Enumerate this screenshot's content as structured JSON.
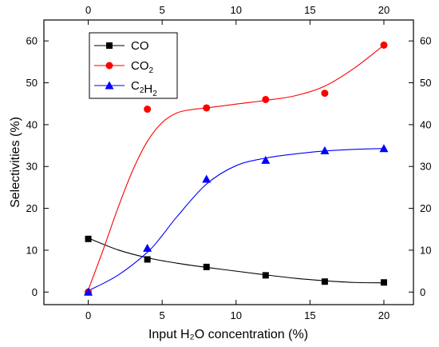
{
  "chart_data": {
    "type": "scatter",
    "xlabel": "Input H₂O concentration (%)",
    "ylabel": "Selectivities (%)",
    "xlim": [
      -3,
      22
    ],
    "ylim": [
      -3,
      65
    ],
    "x_ticks": [
      0,
      5,
      10,
      15,
      20
    ],
    "y_ticks": [
      0,
      10,
      20,
      30,
      40,
      50,
      60
    ],
    "top_axis_ticks": [
      0,
      5,
      10,
      15,
      20
    ],
    "right_axis_ticks": [
      0,
      10,
      20,
      30,
      40,
      50,
      60
    ],
    "grid": false,
    "legend_position": "top-left",
    "series": [
      {
        "name": "CO",
        "color": "#000000",
        "marker": "square",
        "x": [
          0,
          4,
          8,
          12,
          16,
          20
        ],
        "y": [
          12.7,
          7.8,
          6.0,
          4.0,
          2.5,
          2.3
        ],
        "curve_x": [
          0,
          2,
          4,
          6,
          8,
          10,
          12,
          14,
          16,
          18,
          20
        ],
        "curve_y": [
          12.9,
          10.1,
          8.2,
          6.9,
          5.9,
          5.0,
          4.1,
          3.3,
          2.7,
          2.3,
          2.2
        ]
      },
      {
        "name": "CO₂",
        "color": "#ff0000",
        "marker": "circle",
        "x": [
          0,
          4,
          8,
          12,
          16,
          20
        ],
        "y": [
          0,
          43.7,
          44.0,
          46.0,
          47.5,
          59.0
        ],
        "curve_x": [
          0,
          1,
          2,
          3,
          4,
          5,
          6,
          7,
          8,
          10,
          12,
          14,
          16,
          18,
          20
        ],
        "curve_y": [
          0.5,
          10,
          20,
          29,
          36,
          40.5,
          42.8,
          43.6,
          44.0,
          44.9,
          45.8,
          46.9,
          49.2,
          53.5,
          59.0
        ]
      },
      {
        "name": "C₂H₂",
        "color": "#0000ff",
        "marker": "triangle",
        "x": [
          0,
          4,
          8,
          12,
          16,
          20
        ],
        "y": [
          0,
          10.5,
          27.0,
          31.5,
          33.8,
          34.3
        ],
        "curve_x": [
          0,
          2,
          4,
          5,
          6,
          8,
          10,
          12,
          14,
          16,
          18,
          20
        ],
        "curve_y": [
          0.3,
          4.0,
          9.5,
          13.5,
          18.0,
          25.8,
          30.2,
          32.0,
          33.0,
          33.7,
          34.1,
          34.3
        ]
      }
    ]
  }
}
